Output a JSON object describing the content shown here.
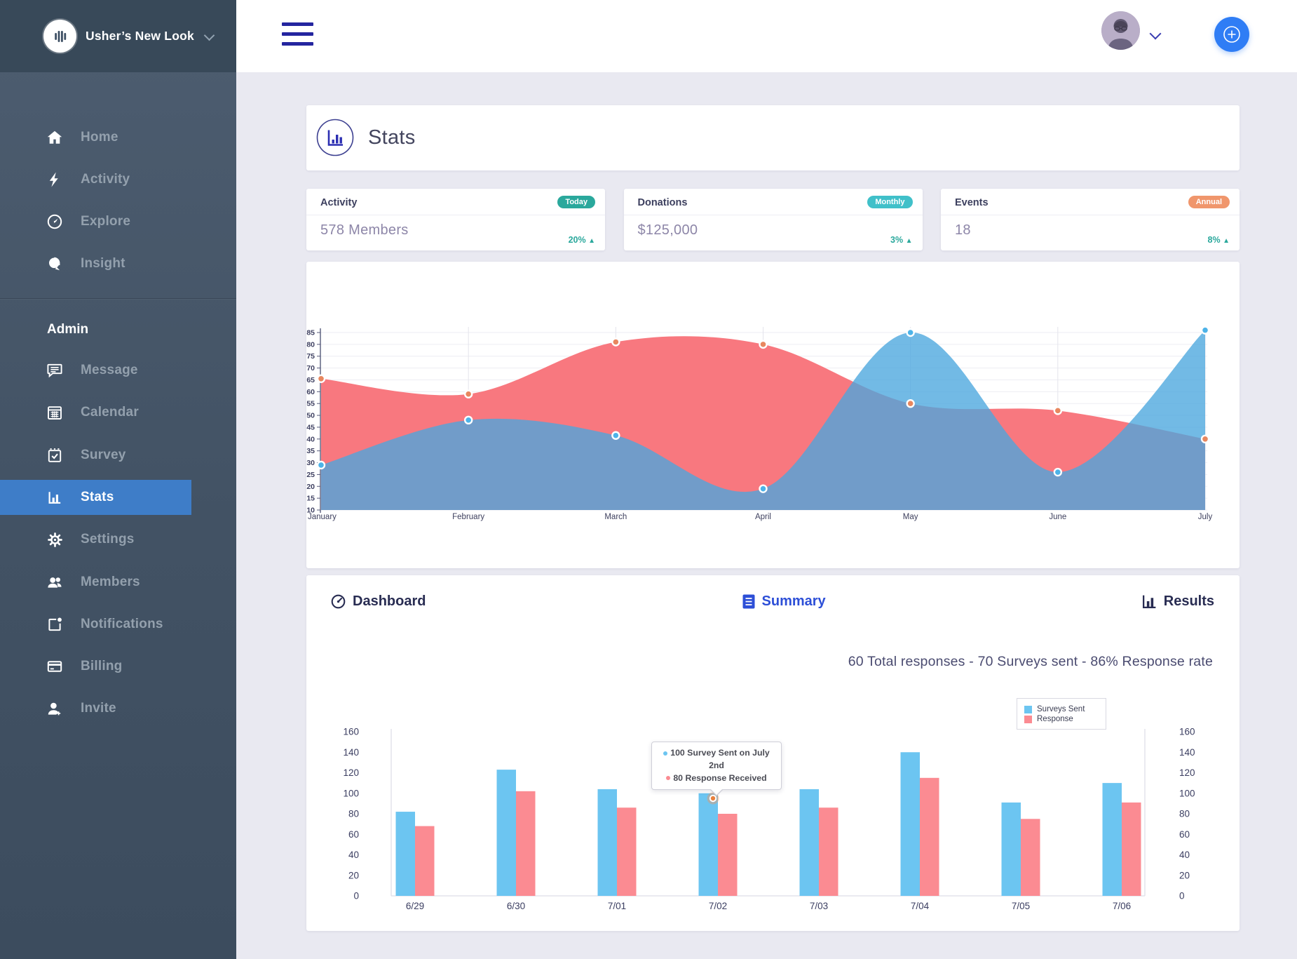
{
  "sidebar": {
    "logo_text": "Usher’s New Look",
    "admin_heading": "Admin",
    "items_main": [
      {
        "label": "Home",
        "icon": "home-icon"
      },
      {
        "label": "Activity",
        "icon": "activity-icon"
      },
      {
        "label": "Explore",
        "icon": "explore-icon"
      },
      {
        "label": "Insight",
        "icon": "insight-icon"
      }
    ],
    "items_admin": [
      {
        "label": "Message",
        "icon": "message-icon",
        "active": false
      },
      {
        "label": "Calendar",
        "icon": "calendar-icon",
        "active": false
      },
      {
        "label": "Survey",
        "icon": "survey-icon",
        "active": false
      },
      {
        "label": "Stats",
        "icon": "stats-icon",
        "active": true
      },
      {
        "label": "Settings",
        "icon": "settings-icon",
        "active": false
      },
      {
        "label": "Members",
        "icon": "members-icon",
        "active": false
      },
      {
        "label": "Notifications",
        "icon": "notifications-icon",
        "active": false
      },
      {
        "label": "Billing",
        "icon": "billing-icon",
        "active": false
      },
      {
        "label": "Invite",
        "icon": "invite-icon",
        "active": false
      }
    ]
  },
  "page": {
    "title": "Stats"
  },
  "stat_cards": [
    {
      "label": "Activity",
      "badge": "Today",
      "badge_color": "#2aa89c",
      "value": "578 Members",
      "delta": "20%",
      "delta_dir": "up"
    },
    {
      "label": "Donations",
      "badge": "Monthly",
      "badge_color": "#40c0c9",
      "value": "$125,000",
      "delta": "3%",
      "delta_dir": "up"
    },
    {
      "label": "Events",
      "badge": "Annual",
      "badge_color": "#f0966c",
      "value": "18",
      "delta": "8%",
      "delta_dir": "up"
    }
  ],
  "tabs": {
    "items": [
      {
        "label": "Dashboard",
        "icon": "dashboard-icon",
        "active": false
      },
      {
        "label": "Summary",
        "icon": "summary-icon",
        "active": true
      },
      {
        "label": "Results",
        "icon": "results-icon",
        "active": false
      }
    ]
  },
  "summary_line": "60 Total responses - 70 Surveys sent - 86% Response rate",
  "bar_tooltip": {
    "line1": "100 Survey Sent on July 2nd",
    "line2": "80 Response Received"
  },
  "colors": {
    "accent_blue": "#2f7df5",
    "sidebar_active_blue": "#3e7dc8",
    "teal": "#2aa89c",
    "indigo_menu": "#24259f",
    "bar_blue": "#6cc5f1",
    "bar_red": "#fb8b92",
    "area_red": "#f8787f",
    "area_blue": "rgba(74,166,222,0.78)"
  },
  "chart_data": [
    {
      "type": "area",
      "title": "",
      "categories": [
        "January",
        "February",
        "March",
        "April",
        "May",
        "June",
        "July"
      ],
      "series": [
        {
          "name": "red-area",
          "color": "#f8787f",
          "point_color": "#e8875f",
          "values": [
            65.5,
            59,
            81,
            80,
            55,
            52,
            40
          ]
        },
        {
          "name": "blue-area",
          "color": "rgba(74,166,222,0.78)",
          "point_color": "#4db3e8",
          "values": [
            29,
            48,
            41.5,
            19,
            85,
            26,
            86
          ]
        }
      ],
      "ylim": [
        10,
        85
      ],
      "ytick_step": 5,
      "grid": true,
      "legend": "none"
    },
    {
      "type": "bar",
      "title": "",
      "categories": [
        "6/29",
        "6/30",
        "7/01",
        "7/02",
        "7/03",
        "7/04",
        "7/05",
        "7/06"
      ],
      "series": [
        {
          "name": "Surveys Sent",
          "color": "#6cc5f1",
          "values": [
            82,
            123,
            104,
            100,
            104,
            140,
            91,
            110
          ]
        },
        {
          "name": "Response",
          "color": "#fb8b92",
          "values": [
            68,
            102,
            86,
            80,
            86,
            115,
            75,
            91
          ]
        }
      ],
      "ylim": [
        0,
        160
      ],
      "ytick_step": 20,
      "grid": false,
      "legend_position": "top-right",
      "dual_axis": true
    }
  ]
}
